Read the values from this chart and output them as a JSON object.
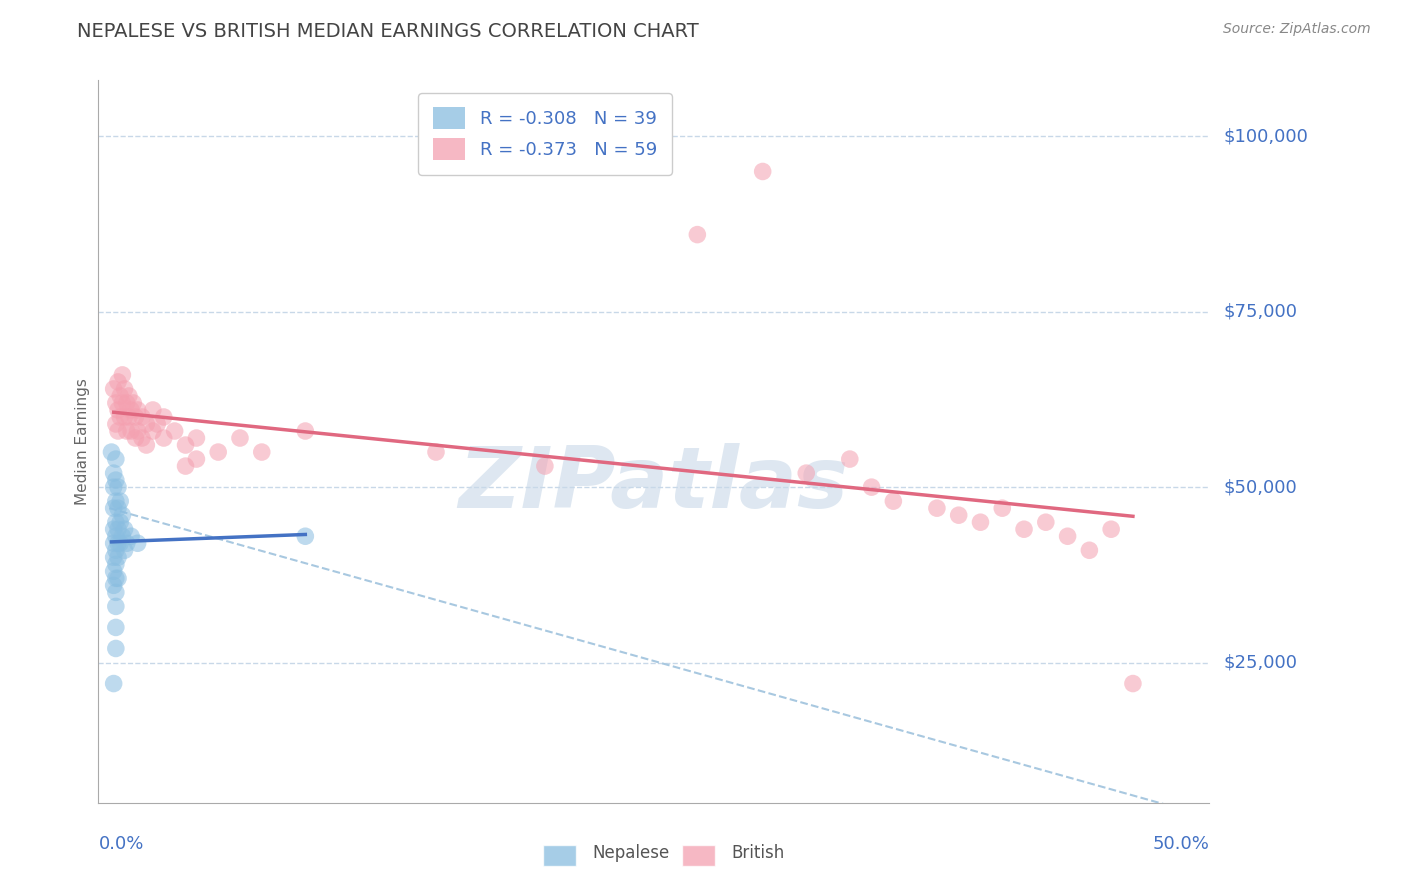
{
  "title": "NEPALESE VS BRITISH MEDIAN EARNINGS CORRELATION CHART",
  "source": "Source: ZipAtlas.com",
  "ylabel": "Median Earnings",
  "yticks": [
    25000,
    50000,
    75000,
    100000
  ],
  "ytick_labels": [
    "$25,000",
    "$50,000",
    "$75,000",
    "$100,000"
  ],
  "xlim": [
    -0.005,
    0.505
  ],
  "ylim": [
    5000,
    108000
  ],
  "nepalese_color": "#89bde0",
  "british_color": "#f4a0b0",
  "trend_nepalese_color": "#4472c4",
  "trend_british_color": "#e06880",
  "trend_dashed_color": "#a8c8e0",
  "grid_color": "#c8d8e8",
  "axis_label_color": "#4472c4",
  "title_color": "#444444",
  "source_color": "#888888",
  "background_color": "#ffffff",
  "nepalese_R": "-0.308",
  "nepalese_N": "39",
  "british_R": "-0.373",
  "british_N": "59",
  "legend_label_nepalese": "Nepalese",
  "legend_label_british": "British",
  "watermark_text": "ZIPatlas",
  "nepalese_points": [
    [
      0.001,
      55000
    ],
    [
      0.002,
      52000
    ],
    [
      0.002,
      50000
    ],
    [
      0.002,
      47000
    ],
    [
      0.002,
      44000
    ],
    [
      0.002,
      42000
    ],
    [
      0.002,
      40000
    ],
    [
      0.002,
      38000
    ],
    [
      0.002,
      36000
    ],
    [
      0.003,
      54000
    ],
    [
      0.003,
      51000
    ],
    [
      0.003,
      48000
    ],
    [
      0.003,
      45000
    ],
    [
      0.003,
      43000
    ],
    [
      0.003,
      41000
    ],
    [
      0.003,
      39000
    ],
    [
      0.003,
      37000
    ],
    [
      0.003,
      35000
    ],
    [
      0.003,
      33000
    ],
    [
      0.004,
      50000
    ],
    [
      0.004,
      47000
    ],
    [
      0.004,
      44000
    ],
    [
      0.004,
      42000
    ],
    [
      0.004,
      40000
    ],
    [
      0.004,
      37000
    ],
    [
      0.005,
      48000
    ],
    [
      0.005,
      45000
    ],
    [
      0.005,
      42000
    ],
    [
      0.006,
      46000
    ],
    [
      0.006,
      43000
    ],
    [
      0.007,
      44000
    ],
    [
      0.007,
      41000
    ],
    [
      0.008,
      42000
    ],
    [
      0.01,
      43000
    ],
    [
      0.013,
      42000
    ],
    [
      0.003,
      27000
    ],
    [
      0.003,
      30000
    ],
    [
      0.002,
      22000
    ],
    [
      0.09,
      43000
    ]
  ],
  "british_points": [
    [
      0.002,
      64000
    ],
    [
      0.003,
      62000
    ],
    [
      0.003,
      59000
    ],
    [
      0.004,
      65000
    ],
    [
      0.004,
      61000
    ],
    [
      0.004,
      58000
    ],
    [
      0.005,
      63000
    ],
    [
      0.005,
      60000
    ],
    [
      0.006,
      66000
    ],
    [
      0.006,
      62000
    ],
    [
      0.007,
      64000
    ],
    [
      0.007,
      60000
    ],
    [
      0.008,
      62000
    ],
    [
      0.008,
      58000
    ],
    [
      0.009,
      63000
    ],
    [
      0.009,
      60000
    ],
    [
      0.01,
      61000
    ],
    [
      0.01,
      58000
    ],
    [
      0.011,
      62000
    ],
    [
      0.012,
      60000
    ],
    [
      0.012,
      57000
    ],
    [
      0.013,
      61000
    ],
    [
      0.013,
      58000
    ],
    [
      0.015,
      60000
    ],
    [
      0.015,
      57000
    ],
    [
      0.017,
      59000
    ],
    [
      0.017,
      56000
    ],
    [
      0.02,
      61000
    ],
    [
      0.02,
      58000
    ],
    [
      0.022,
      59000
    ],
    [
      0.025,
      60000
    ],
    [
      0.025,
      57000
    ],
    [
      0.03,
      58000
    ],
    [
      0.035,
      56000
    ],
    [
      0.035,
      53000
    ],
    [
      0.04,
      57000
    ],
    [
      0.04,
      54000
    ],
    [
      0.05,
      55000
    ],
    [
      0.06,
      57000
    ],
    [
      0.07,
      55000
    ],
    [
      0.09,
      58000
    ],
    [
      0.15,
      55000
    ],
    [
      0.2,
      53000
    ],
    [
      0.27,
      86000
    ],
    [
      0.3,
      95000
    ],
    [
      0.32,
      52000
    ],
    [
      0.34,
      54000
    ],
    [
      0.35,
      50000
    ],
    [
      0.36,
      48000
    ],
    [
      0.38,
      47000
    ],
    [
      0.39,
      46000
    ],
    [
      0.4,
      45000
    ],
    [
      0.41,
      47000
    ],
    [
      0.42,
      44000
    ],
    [
      0.43,
      45000
    ],
    [
      0.44,
      43000
    ],
    [
      0.45,
      41000
    ],
    [
      0.46,
      44000
    ],
    [
      0.47,
      22000
    ]
  ],
  "dashed_line_x": [
    0.0,
    0.505
  ],
  "dashed_line_y": [
    47000,
    3000
  ]
}
